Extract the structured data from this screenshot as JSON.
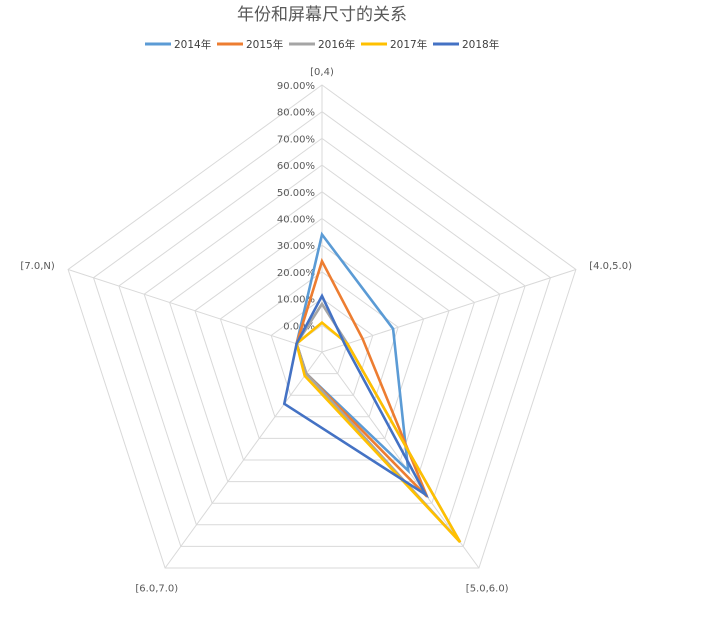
{
  "chart_data": {
    "type": "radar",
    "title": "年份和屏幕尺寸的关系",
    "categories": [
      "[0,4)",
      "[4.0,5.0)",
      "[5.0,6.0)",
      "[6.0,7.0)",
      "[7.0,N)"
    ],
    "ticks": [
      "0.00%",
      "10.00%",
      "20.00%",
      "30.00%",
      "40.00%",
      "50.00%",
      "60.00%",
      "70.00%",
      "80.00%",
      "90.00%"
    ],
    "rlim": [
      -10,
      90
    ],
    "grid": true,
    "legend_position": "top",
    "series": [
      {
        "name": "2014年",
        "color": "#5b9bd5",
        "values": [
          34,
          18,
          45,
          0,
          0
        ]
      },
      {
        "name": "2015年",
        "color": "#ed7d31",
        "values": [
          24,
          6,
          57,
          0,
          0
        ]
      },
      {
        "name": "2016年",
        "color": "#a5a5a5",
        "values": [
          8,
          0,
          78,
          0,
          0
        ]
      },
      {
        "name": "2017年",
        "color": "#ffc000",
        "values": [
          1,
          0,
          78,
          1,
          0
        ]
      },
      {
        "name": "2018年",
        "color": "#4472c4",
        "values": [
          11,
          -1,
          56,
          14,
          0
        ]
      }
    ]
  }
}
